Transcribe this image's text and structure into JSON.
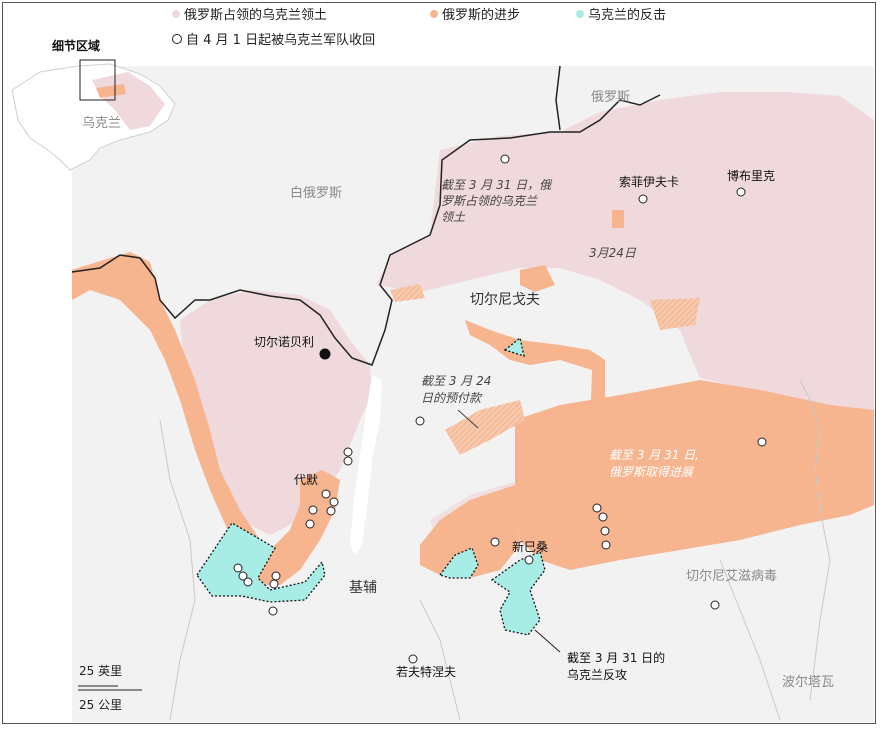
{
  "legend": {
    "occupied": "俄罗斯占领的乌克兰领土",
    "advance": "俄罗斯的进步",
    "counter": "乌克兰的反击",
    "retaken": "自 4 月 1 日起被乌克兰军队收回"
  },
  "inset": {
    "title": "细节区域",
    "country": "乌克兰"
  },
  "places": {
    "belarus": "白俄罗斯",
    "russia": "俄罗斯",
    "chernihiv": "切尔尼戈夫",
    "chernobyl": "切尔诺贝利",
    "sosnytsia": "索菲伊夫卡",
    "borzna": "博布里克",
    "dymer": "代默",
    "kyiv": "基辅",
    "brovary": "新巳桑",
    "vasylkiv": "若夫特涅夫",
    "pereiaslav": "切尔尼艾滋病毒",
    "poltava": "波尔塔瓦"
  },
  "notes": {
    "occupied_mar31_l1": "截至 3 月 31 日，俄",
    "occupied_mar31_l2": "罗斯占领的乌克兰",
    "occupied_mar31_l3": "领土",
    "mar24": "3月24日",
    "prepay_l1": "截至 3 月 24",
    "prepay_l2": "日的预付款",
    "advance_l1": "截至 3 月 31 日,",
    "advance_l2": "俄罗斯取得进展",
    "counter_l1": "截至 3 月 31 日的",
    "counter_l2": "乌克兰反攻"
  },
  "scale": {
    "miles": "25 英里",
    "km": "25 公里"
  },
  "colors": {
    "occupied": "#f0d9dc",
    "advance": "#f6b48f",
    "counter": "#a8ece6",
    "land": "#f1f1f1",
    "border": "#222222"
  }
}
